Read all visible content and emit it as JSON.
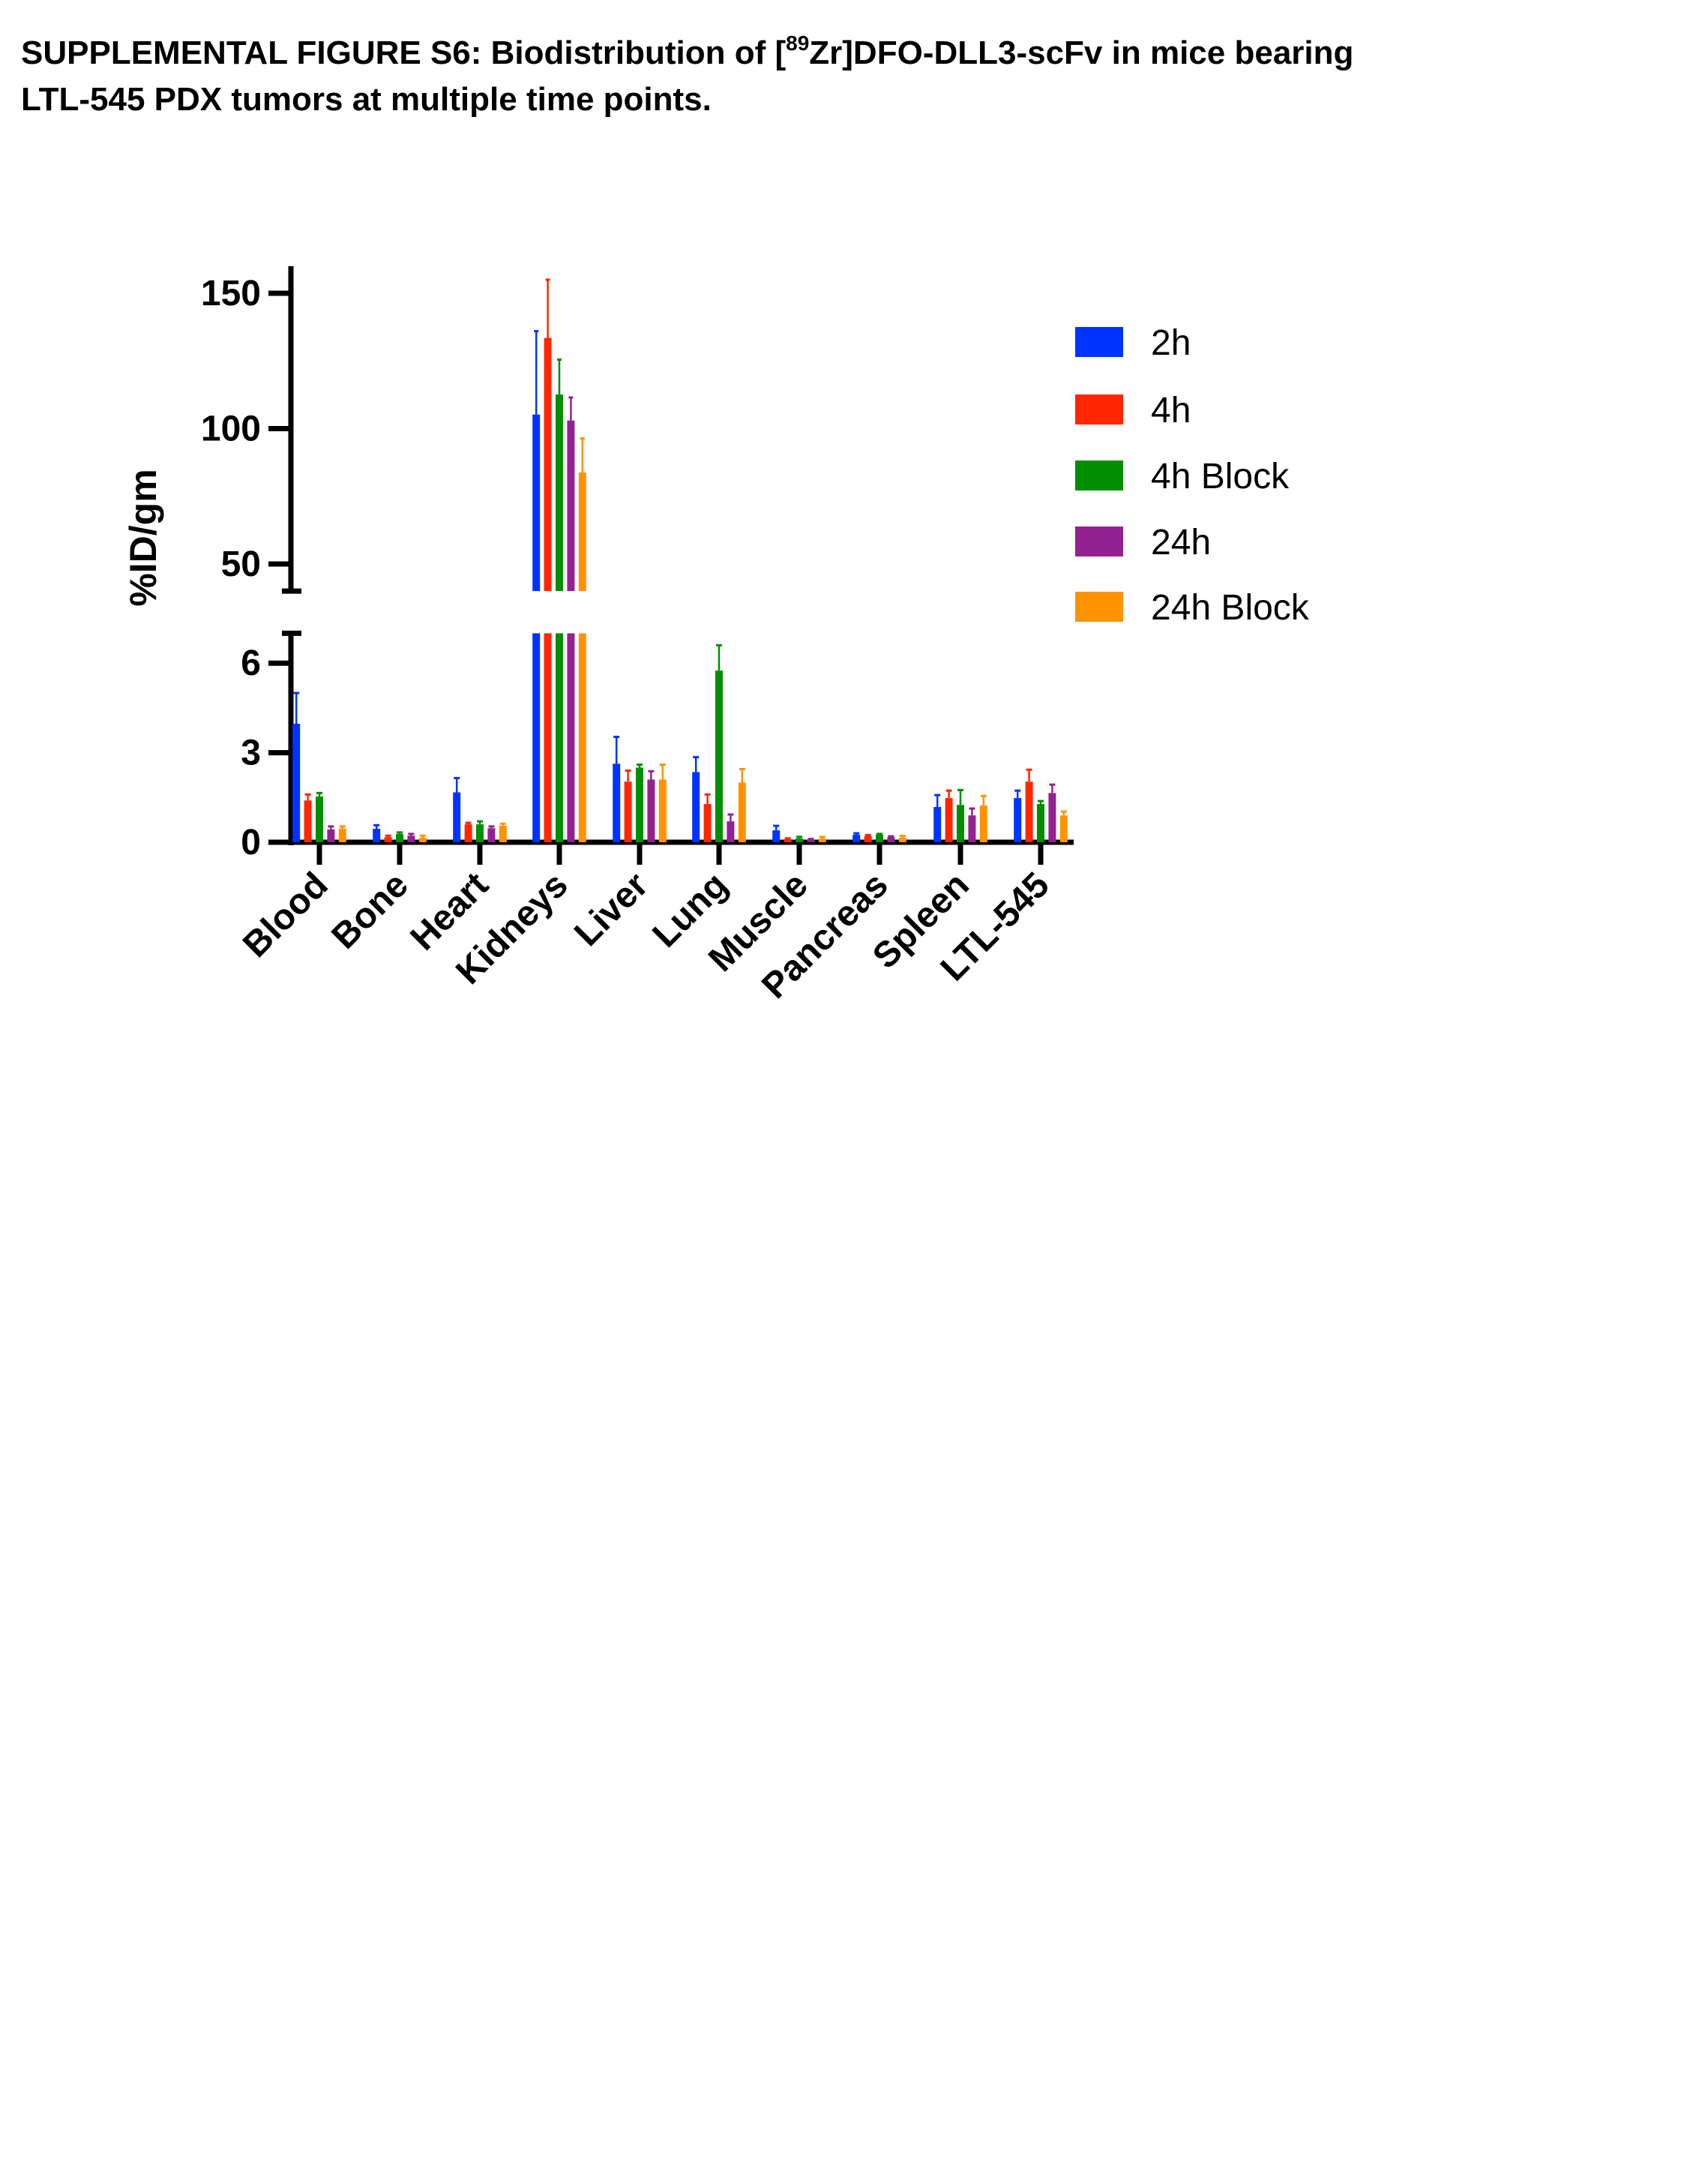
{
  "title": {
    "part1": "SUPPLEMENTAL FIGURE S6: Biodistribution of [",
    "superscript": "89",
    "part2": "Zr]DFO-DLL3-scFv in mice bearing",
    "line2": "LTL-545 PDX tumors at multiple time points."
  },
  "chart_data": {
    "type": "bar",
    "title": "",
    "xlabel": "",
    "ylabel": "%ID/gm",
    "y_axis_break": {
      "lower_range": [
        0,
        7
      ],
      "upper_range": [
        40,
        160
      ]
    },
    "yticks_lower": [
      0,
      3,
      6
    ],
    "yticks_upper": [
      50,
      100,
      150
    ],
    "categories": [
      "Blood",
      "Bone",
      "Heart",
      "Kidneys",
      "Liver",
      "Lung",
      "Muscle",
      "Pancreas",
      "Spleen",
      "LTL-545"
    ],
    "legend_position": "right",
    "grid": false,
    "series": [
      {
        "name": "2h",
        "color": "#0033ff",
        "values": [
          3.97,
          0.45,
          1.67,
          105.2,
          2.63,
          2.35,
          0.4,
          0.25,
          1.18,
          1.48
        ],
        "errors_upper": [
          5.0,
          0.57,
          2.15,
          136,
          3.53,
          2.85,
          0.55,
          0.3,
          1.58,
          1.73
        ]
      },
      {
        "name": "4h",
        "color": "#ff2600",
        "values": [
          1.4,
          0.17,
          0.6,
          133.5,
          2.03,
          1.28,
          0.1,
          0.2,
          1.48,
          2.03
        ],
        "errors_upper": [
          1.6,
          0.22,
          0.65,
          155,
          2.4,
          1.6,
          0.13,
          0.24,
          1.73,
          2.43
        ]
      },
      {
        "name": "4h Block",
        "color": "#008f00",
        "values": [
          1.53,
          0.28,
          0.6,
          112.6,
          2.5,
          5.75,
          0.13,
          0.25,
          1.25,
          1.28
        ],
        "errors_upper": [
          1.65,
          0.33,
          0.7,
          125.5,
          2.6,
          6.6,
          0.18,
          0.28,
          1.75,
          1.38
        ]
      },
      {
        "name": "24h",
        "color": "#942192",
        "values": [
          0.43,
          0.22,
          0.47,
          103.0,
          2.1,
          0.7,
          0.08,
          0.17,
          0.9,
          1.65
        ],
        "errors_upper": [
          0.53,
          0.28,
          0.53,
          111.5,
          2.38,
          0.93,
          0.11,
          0.2,
          1.13,
          1.93
        ]
      },
      {
        "name": "24h Block",
        "color": "#ff9300",
        "values": [
          0.46,
          0.15,
          0.55,
          83.8,
          2.1,
          2.0,
          0.12,
          0.15,
          1.23,
          0.9
        ],
        "errors_upper": [
          0.53,
          0.22,
          0.62,
          96.4,
          2.6,
          2.45,
          0.18,
          0.21,
          1.55,
          1.03
        ]
      }
    ]
  }
}
